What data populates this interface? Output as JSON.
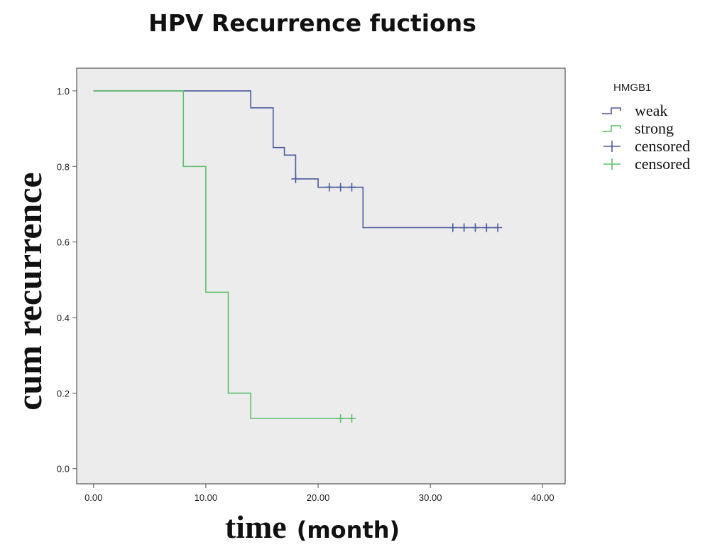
{
  "chart_data": {
    "type": "line",
    "subtype": "kaplan-meier-step",
    "title": "HPV Recurrence fuctions",
    "xlabel": "time",
    "xlabel_unit": "(month)",
    "ylabel": "cum recurrence",
    "xlim": [
      -1.5,
      42
    ],
    "ylim": [
      -0.04,
      1.06
    ],
    "x_ticks": [
      0,
      10,
      20,
      30,
      40
    ],
    "x_tick_labels": [
      "0.00",
      "10.00",
      "20.00",
      "30.00",
      "40.00"
    ],
    "y_ticks": [
      0.0,
      0.2,
      0.4,
      0.6,
      0.8,
      1.0
    ],
    "y_tick_labels": [
      "0.0",
      "0.2",
      "0.4",
      "0.6",
      "0.8",
      "1.0"
    ],
    "legend": {
      "title": "HMGB1",
      "position": "right",
      "entries": [
        {
          "label": "weak",
          "kind": "line",
          "series": "weak"
        },
        {
          "label": "strong",
          "kind": "line",
          "series": "strong"
        },
        {
          "label": "censored",
          "kind": "censor",
          "series": "weak"
        },
        {
          "label": "censored",
          "kind": "censor",
          "series": "strong"
        }
      ]
    },
    "series": [
      {
        "name": "weak",
        "color": "#4a5a9c",
        "steps": [
          [
            0,
            1.0
          ],
          [
            14,
            0.955
          ],
          [
            16,
            0.85
          ],
          [
            17,
            0.83
          ],
          [
            18,
            0.767
          ],
          [
            20,
            0.745
          ],
          [
            24,
            0.638
          ],
          [
            36,
            0.638
          ]
        ],
        "censored": [
          [
            18,
            0.767
          ],
          [
            21,
            0.745
          ],
          [
            22,
            0.745
          ],
          [
            23,
            0.745
          ],
          [
            32,
            0.638
          ],
          [
            33,
            0.638
          ],
          [
            34,
            0.638
          ],
          [
            35,
            0.638
          ],
          [
            36,
            0.638
          ]
        ]
      },
      {
        "name": "strong",
        "color": "#5fbf6a",
        "steps": [
          [
            0,
            1.0
          ],
          [
            8,
            0.8
          ],
          [
            10,
            0.467
          ],
          [
            12,
            0.2
          ],
          [
            14,
            0.133
          ],
          [
            23,
            0.133
          ]
        ],
        "censored": [
          [
            22,
            0.133
          ],
          [
            23,
            0.133
          ]
        ]
      }
    ]
  },
  "colors": {
    "plot_background": "#ececec",
    "axis": "#555555"
  }
}
